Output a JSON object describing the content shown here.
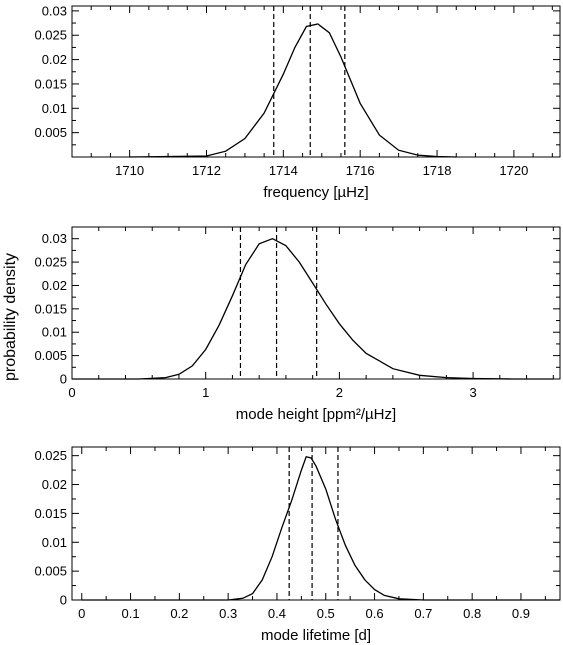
{
  "figure": {
    "ylabel": "probability density"
  },
  "chart_data": [
    {
      "type": "line",
      "xlabel": "frequency [µHz]",
      "xlim": [
        1708.5,
        1721.2
      ],
      "ylim": [
        0,
        0.031
      ],
      "x_major_ticks": [
        1710,
        1712,
        1714,
        1716,
        1718,
        1720
      ],
      "x_major_step": 2,
      "x_minor_step": 0.5,
      "y_major_ticks": [
        0.005,
        0.01,
        0.015,
        0.02,
        0.025,
        0.03
      ],
      "y_major_labels": [
        "0.005",
        "0.01",
        "0.015",
        "0.02",
        "0.025",
        "0.03"
      ],
      "y_minor_step": 0.0025,
      "series": [
        {
          "x": [
            1710.0,
            1712.0,
            1712.5,
            1713.0,
            1713.5,
            1714.0,
            1714.3,
            1714.6,
            1714.9,
            1715.2,
            1715.5,
            1716.0,
            1716.5,
            1717.0,
            1717.5,
            1718.0,
            1718.5
          ],
          "y": [
            0,
            0.0002,
            0.0012,
            0.0038,
            0.009,
            0.017,
            0.0225,
            0.0268,
            0.0273,
            0.0255,
            0.0205,
            0.011,
            0.0045,
            0.0014,
            0.0004,
            0.0001,
            0
          ]
        }
      ],
      "markers": [
        1713.75,
        1714.7,
        1715.6
      ]
    },
    {
      "type": "line",
      "xlabel": "mode height [ppm²/µHz]",
      "xlim": [
        0,
        3.65
      ],
      "ylim": [
        0,
        0.0325
      ],
      "x_major_ticks": [
        0,
        1,
        2,
        3
      ],
      "x_major_step": 1,
      "x_minor_step": 0.2,
      "y_major_ticks": [
        0,
        0.005,
        0.01,
        0.015,
        0.02,
        0.025,
        0.03
      ],
      "y_major_labels": [
        "0",
        "0.005",
        "0.01",
        "0.015",
        "0.02",
        "0.025",
        "0.03"
      ],
      "y_minor_step": 0.0025,
      "series": [
        {
          "x": [
            0.0,
            0.5,
            0.7,
            0.8,
            0.9,
            1.0,
            1.1,
            1.2,
            1.3,
            1.4,
            1.5,
            1.6,
            1.7,
            1.8,
            1.9,
            2.0,
            2.1,
            2.2,
            2.4,
            2.6,
            2.8,
            3.0,
            3.3,
            3.6
          ],
          "y": [
            0,
            0,
            0.0003,
            0.001,
            0.0028,
            0.0063,
            0.0115,
            0.0178,
            0.0245,
            0.0289,
            0.03,
            0.0285,
            0.025,
            0.0205,
            0.016,
            0.0118,
            0.0083,
            0.0055,
            0.0022,
            0.0008,
            0.0003,
            0.0001,
            0,
            0
          ]
        }
      ],
      "markers": [
        1.26,
        1.53,
        1.83
      ]
    },
    {
      "type": "line",
      "xlabel": "mode lifetime [d]",
      "xlim": [
        -0.02,
        0.98
      ],
      "ylim": [
        0,
        0.0265
      ],
      "x_major_ticks": [
        0,
        0.1,
        0.2,
        0.3,
        0.4,
        0.5,
        0.6,
        0.7,
        0.8,
        0.9
      ],
      "x_major_labels": [
        "0",
        "0.1",
        "0.2",
        "0.3",
        "0.4",
        "0.5",
        "0.6",
        "0.7",
        "0.8",
        "0.9"
      ],
      "x_major_step": 0.1,
      "x_minor_step": 0.05,
      "y_major_ticks": [
        0,
        0.005,
        0.01,
        0.015,
        0.02,
        0.025
      ],
      "y_major_labels": [
        "0",
        "0.005",
        "0.01",
        "0.015",
        "0.02",
        "0.025"
      ],
      "y_minor_step": 0.0025,
      "series": [
        {
          "x": [
            0.0,
            0.3,
            0.33,
            0.35,
            0.37,
            0.39,
            0.41,
            0.43,
            0.45,
            0.46,
            0.47,
            0.48,
            0.5,
            0.52,
            0.54,
            0.56,
            0.58,
            0.6,
            0.62,
            0.65,
            0.7,
            0.98
          ],
          "y": [
            0,
            0,
            0.0003,
            0.0011,
            0.0035,
            0.0075,
            0.0125,
            0.0172,
            0.0225,
            0.0248,
            0.0246,
            0.0232,
            0.0192,
            0.014,
            0.0095,
            0.006,
            0.0035,
            0.0018,
            0.0008,
            0.0002,
            0,
            0
          ]
        }
      ],
      "markers": [
        0.425,
        0.472,
        0.525
      ]
    }
  ]
}
